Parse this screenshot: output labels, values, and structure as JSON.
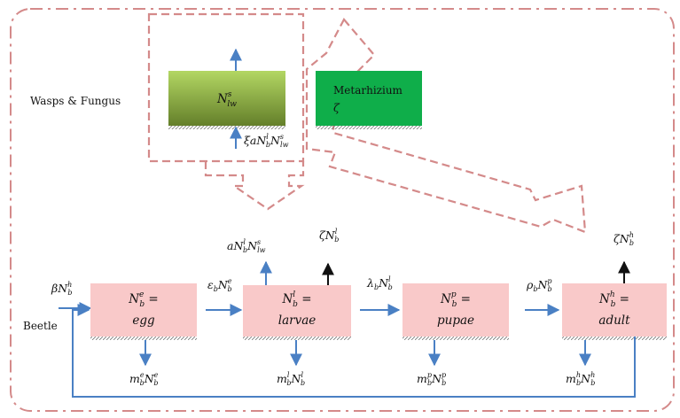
{
  "labels": {
    "group": "Wasps & Fungus",
    "beetle": "Beetle",
    "metarhizium_title": "Metarhizium",
    "metarhizium_symbol": "ζ"
  },
  "compartments": {
    "wasp": "N_lw^s",
    "egg_line1": "N_b^e =",
    "egg_line2": "egg",
    "larvae_line1": "N_b^l =",
    "larvae_line2": "larvae",
    "pupae_line1": "N_b^p =",
    "pupae_line2": "pupae",
    "adult_line1": "N_b^h =",
    "adult_line2": "adult"
  },
  "rates": {
    "wasp_recruit": "ξaN_b^l N_lw^s",
    "birth": "βN_b^h",
    "egg_to_larvae": "ε_b N_b^e",
    "larvae_to_pupae": "λ_b N_b^l",
    "pupae_to_adult": "ρ_b N_b^p",
    "larvae_parasitism": "aN_b^l N_lw^s",
    "larvae_fungus": "ζN_b^l",
    "adult_fungus": "ζN_b^h",
    "egg_death": "m_b^e N_b^e",
    "larvae_death": "m_b^l N_b^l",
    "pupae_death": "m_b^p N_b^p",
    "adult_death": "m_b^h N_b^h"
  },
  "colors": {
    "compartment_fill": "#f9c9c9",
    "wasp_fill_top": "#a9d25a",
    "wasp_fill_bottom": "#6b8a2f",
    "fungus_fill": "#0fae4a",
    "flow_arrow": "#4a80c4",
    "dash_border": "#d48a8a"
  }
}
